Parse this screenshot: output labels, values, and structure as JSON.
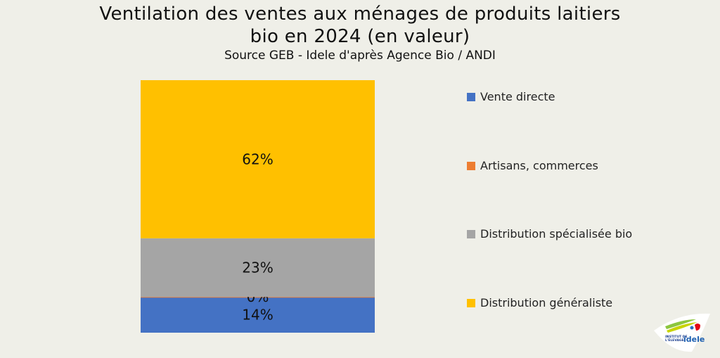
{
  "chart_data": {
    "type": "stacked-bar",
    "title_line1": "Ventilation des ventes aux ménages de produits laitiers",
    "title_line2": "bio en 2024 (en valeur)",
    "subtitle": "Source GEB -  Idele d'après Agence Bio / ANDI",
    "series": [
      {
        "name": "Vente directe",
        "value": 14,
        "label": "14%",
        "color": "#4472c4"
      },
      {
        "name": "Artisans, commerces",
        "value": 0,
        "label": "0%",
        "color": "#ed7d31"
      },
      {
        "name": "Distribution spécialisée bio",
        "value": 23,
        "label": "23%",
        "color": "#a5a5a5"
      },
      {
        "name": "Distribution généraliste",
        "value": 62,
        "label": "62%",
        "color": "#ffc000"
      }
    ],
    "legend_position": "right",
    "grid": false
  },
  "logo": {
    "text_line1": "INSTITUT DE",
    "text_line2": "L'ÉLEVAGE",
    "brand": "idele"
  }
}
